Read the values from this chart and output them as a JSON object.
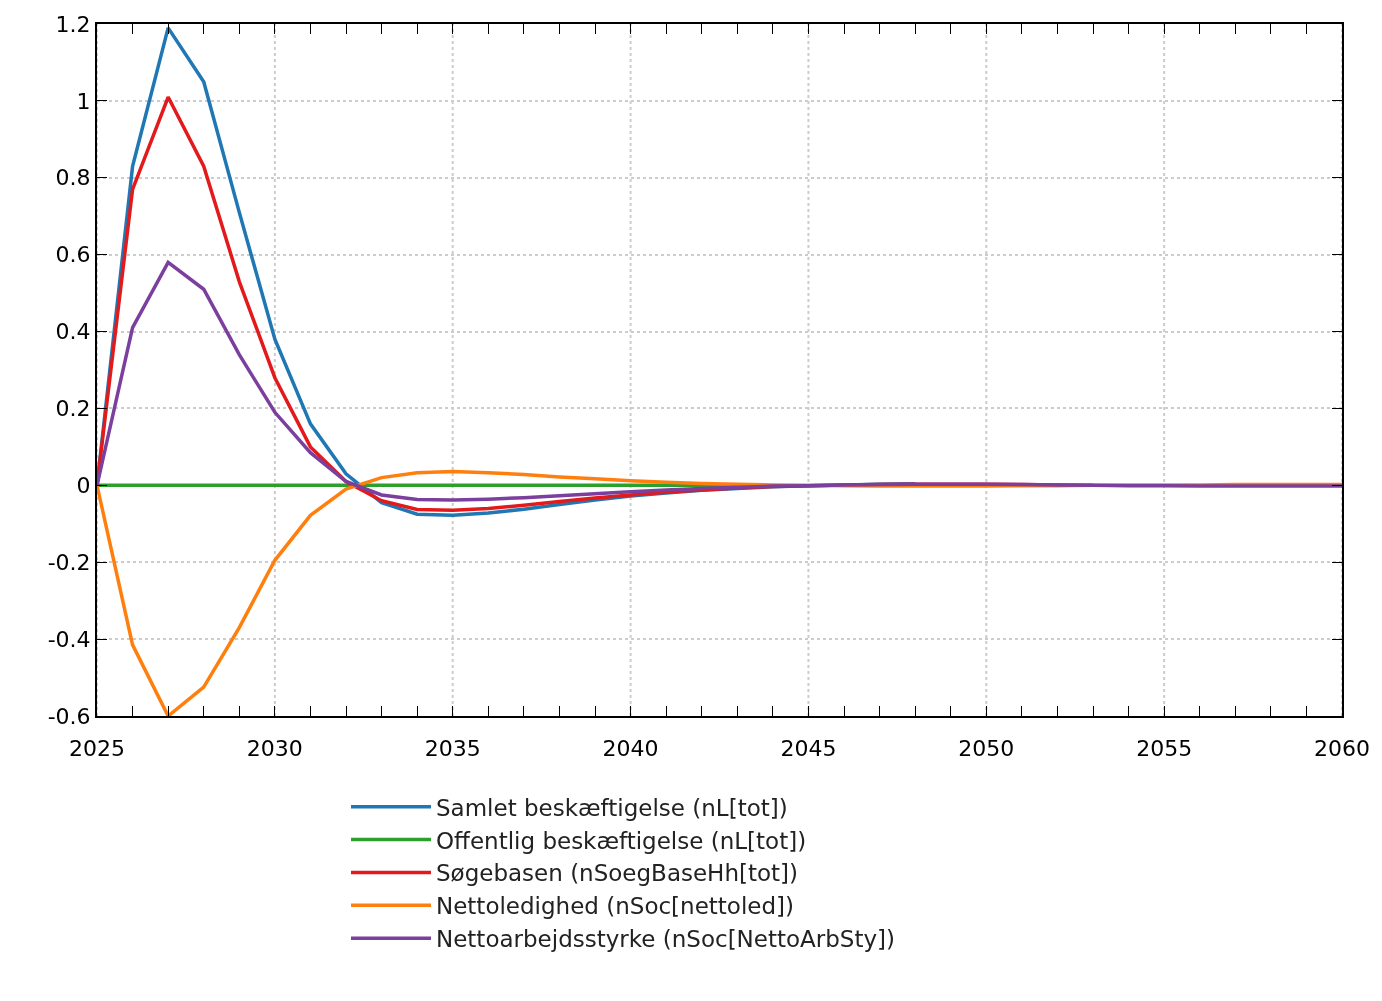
{
  "chart_data": {
    "type": "line",
    "x": [
      2025,
      2026,
      2027,
      2028,
      2029,
      2030,
      2031,
      2032,
      2033,
      2034,
      2035,
      2036,
      2037,
      2038,
      2039,
      2040,
      2041,
      2042,
      2043,
      2044,
      2045,
      2046,
      2047,
      2048,
      2049,
      2050,
      2051,
      2052,
      2053,
      2054,
      2055,
      2056,
      2057,
      2058,
      2059,
      2060
    ],
    "series": [
      {
        "name": "Samlet beskæftigelse (nL[tot])",
        "color": "#1f77b4",
        "values": [
          0,
          0.83,
          1.19,
          1.05,
          0.71,
          0.38,
          0.16,
          0.03,
          -0.045,
          -0.075,
          -0.078,
          -0.072,
          -0.062,
          -0.05,
          -0.038,
          -0.028,
          -0.02,
          -0.013,
          -0.008,
          -0.004,
          -0.001,
          0.001,
          0.003,
          0.004,
          null,
          null,
          null,
          null,
          null,
          null,
          null,
          null,
          null,
          null,
          null,
          null
        ]
      },
      {
        "name": "Offentlig beskæftigelse (nL[tot])",
        "color": "#2ca02c",
        "values": [
          0,
          0,
          0,
          0,
          0,
          0,
          0,
          0,
          0,
          0,
          0,
          0,
          0,
          0,
          0,
          0,
          0,
          0,
          0,
          null,
          null,
          null,
          null,
          null,
          null,
          null,
          null,
          null,
          null,
          null,
          null,
          null,
          null,
          null,
          null,
          null
        ]
      },
      {
        "name": "Søgebasen (nSoegBaseHh[tot])",
        "color": "#e31a1c",
        "values": [
          0,
          0.77,
          1.01,
          0.83,
          0.53,
          0.28,
          0.1,
          0.01,
          -0.04,
          -0.063,
          -0.065,
          -0.06,
          -0.052,
          -0.042,
          -0.033,
          -0.025,
          -0.018,
          -0.012,
          -0.007,
          -0.003,
          -0.001,
          0.001,
          0.002,
          0.003,
          0.003,
          0.003,
          0.002,
          0.001,
          0,
          null,
          null,
          null,
          null,
          null,
          null,
          null
        ]
      },
      {
        "name": "Nettoledighed (nSoc[nettoled])",
        "color": "#ff7f0e",
        "values": [
          0,
          -0.415,
          -0.6,
          -0.525,
          -0.37,
          -0.195,
          -0.078,
          -0.01,
          0.02,
          0.033,
          0.036,
          0.033,
          0.028,
          0.022,
          0.017,
          0.012,
          0.008,
          0.005,
          0.003,
          0.001,
          0,
          -0.001,
          -0.002,
          -0.002,
          -0.002,
          -0.002,
          -0.001,
          -0.001,
          0,
          0.001,
          0.001,
          0.001,
          0.002,
          0.002,
          0.002,
          0.002
        ]
      },
      {
        "name": "Nettoarbejdsstyrke (nSoc[NettoArbSty])",
        "color": "#7b3f9e",
        "values": [
          0,
          0.41,
          0.58,
          0.51,
          0.34,
          0.19,
          0.085,
          0.01,
          -0.025,
          -0.037,
          -0.038,
          -0.036,
          -0.032,
          -0.027,
          -0.022,
          -0.017,
          -0.012,
          -0.008,
          -0.005,
          -0.002,
          -0.001,
          0.001,
          0.002,
          0.003,
          0.003,
          0.003,
          0.002,
          0.001,
          0,
          -0.001,
          -0.001,
          -0.002,
          -0.002,
          -0.002,
          -0.002,
          -0.002
        ]
      }
    ],
    "xlim": [
      2025,
      2060
    ],
    "xticks": [
      2025,
      {
        "value": 2026,
        "label": null
      },
      {
        "value": 2027,
        "label": null
      },
      {
        "value": 2028,
        "label": null
      },
      {
        "value": 2029,
        "label": null
      },
      2030,
      {
        "value": 2031,
        "label": null
      },
      {
        "value": 2032,
        "label": null
      },
      {
        "value": 2033,
        "label": null
      },
      {
        "value": 2034,
        "label": null
      },
      2035,
      {
        "value": 2036,
        "label": null
      },
      {
        "value": 2037,
        "label": null
      },
      {
        "value": 2038,
        "label": null
      },
      {
        "value": 2039,
        "label": null
      },
      2040,
      {
        "value": 2041,
        "label": null
      },
      {
        "value": 2042,
        "label": null
      },
      {
        "value": 2043,
        "label": null
      },
      {
        "value": 2044,
        "label": null
      },
      2045,
      {
        "value": 2046,
        "label": null
      },
      {
        "value": 2047,
        "label": null
      },
      {
        "value": 2048,
        "label": null
      },
      {
        "value": 2049,
        "label": null
      },
      2050,
      {
        "value": 2051,
        "label": null
      },
      {
        "value": 2052,
        "label": null
      },
      {
        "value": 2053,
        "label": null
      },
      {
        "value": 2054,
        "label": null
      },
      2055,
      {
        "value": 2056,
        "label": null
      },
      {
        "value": 2057,
        "label": null
      },
      {
        "value": 2058,
        "label": null
      },
      {
        "value": 2059,
        "label": null
      },
      2060
    ],
    "ylim": [
      -0.6,
      1.2
    ],
    "yticks": [
      -0.6,
      -0.4,
      -0.2,
      0,
      0.2,
      0.4,
      0.6,
      0.8,
      1,
      1.2
    ],
    "grid": true,
    "legend": "bottom",
    "line_style": "solid"
  }
}
